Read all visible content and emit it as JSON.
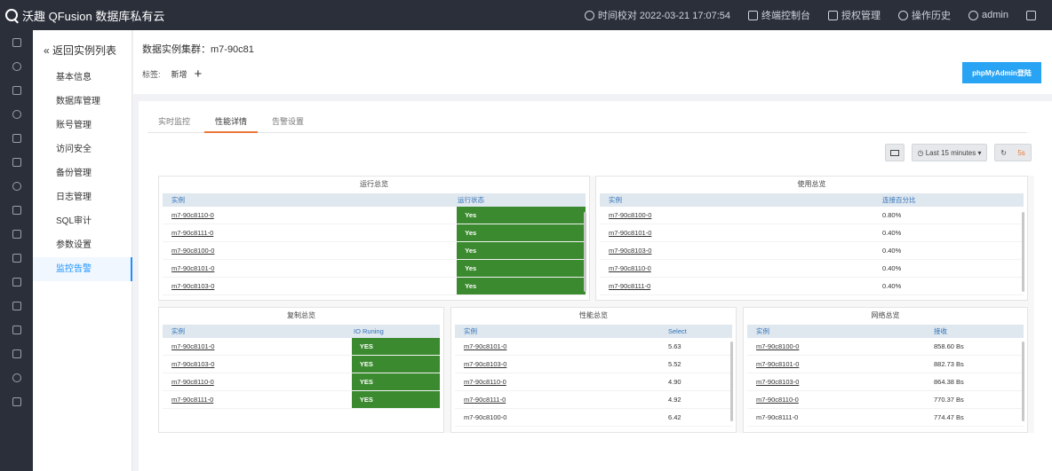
{
  "topbar": {
    "brand": "沃趣 QFusion 数据库私有云",
    "time_check": "时间校对 2022-03-21 17:07:54",
    "terminal": "终端控制台",
    "authorization": "授权管理",
    "history": "操作历史",
    "user": "admin"
  },
  "subnav": {
    "back": "« 返回实例列表",
    "items": [
      "基本信息",
      "数据库管理",
      "账号管理",
      "访问安全",
      "备份管理",
      "日志管理",
      "SQL审计",
      "参数设置",
      "监控告警"
    ]
  },
  "header": {
    "cluster_title": "数据实例集群：m7-90c81",
    "tags_label": "标签:",
    "add_tag": "新增",
    "pma_button": "phpMyAdmin登陆"
  },
  "tabs": [
    "实时监控",
    "性能详情",
    "告警设置"
  ],
  "toolbar": {
    "time_range": "Last 15 minutes",
    "refresh_interval": "5s"
  },
  "panels": {
    "run_overview": {
      "title": "运行总览",
      "columns": [
        "实例",
        "运行状态"
      ],
      "rows": [
        [
          "m7-90c8110-0",
          "Yes"
        ],
        [
          "m7-90c8111-0",
          "Yes"
        ],
        [
          "m7-90c8100-0",
          "Yes"
        ],
        [
          "m7-90c8101-0",
          "Yes"
        ],
        [
          "m7-90c8103-0",
          "Yes"
        ]
      ]
    },
    "usage_overview": {
      "title": "使用总览",
      "columns": [
        "实例",
        "连接百分比"
      ],
      "rows": [
        [
          "m7-90c8100-0",
          "0.80%"
        ],
        [
          "m7-90c8101-0",
          "0.40%"
        ],
        [
          "m7-90c8103-0",
          "0.40%"
        ],
        [
          "m7-90c8110-0",
          "0.40%"
        ],
        [
          "m7-90c8111-0",
          "0.40%"
        ]
      ]
    },
    "replication_overview": {
      "title": "复制总览",
      "columns": [
        "实例",
        "IO Runing"
      ],
      "rows": [
        [
          "m7-90c8101-0",
          "YES"
        ],
        [
          "m7-90c8103-0",
          "YES"
        ],
        [
          "m7-90c8110-0",
          "YES"
        ],
        [
          "m7-90c8111-0",
          "YES"
        ]
      ]
    },
    "performance_overview": {
      "title": "性能总览",
      "columns": [
        "实例",
        "Select"
      ],
      "rows": [
        [
          "m7-90c8101-0",
          "5.63"
        ],
        [
          "m7-90c8103-0",
          "5.52"
        ],
        [
          "m7-90c8110-0",
          "4.90"
        ],
        [
          "m7-90c8111-0",
          "4.92"
        ],
        [
          "m7-90c8100-0",
          "6.42"
        ]
      ]
    },
    "network_overview": {
      "title": "网络总览",
      "columns": [
        "实例",
        "接收"
      ],
      "rows": [
        [
          "m7-90c8100-0",
          "858.60 Bs"
        ],
        [
          "m7-90c8101-0",
          "882.73 Bs"
        ],
        [
          "m7-90c8103-0",
          "864.38 Bs"
        ],
        [
          "m7-90c8110-0",
          "770.37 Bs"
        ],
        [
          "m7-90c8111-0",
          "774.47 Bs"
        ]
      ]
    }
  },
  "colors": {
    "status_green": "#3b8a2f",
    "accent_blue": "#29a4f5",
    "active_tab": "#e8793a"
  }
}
